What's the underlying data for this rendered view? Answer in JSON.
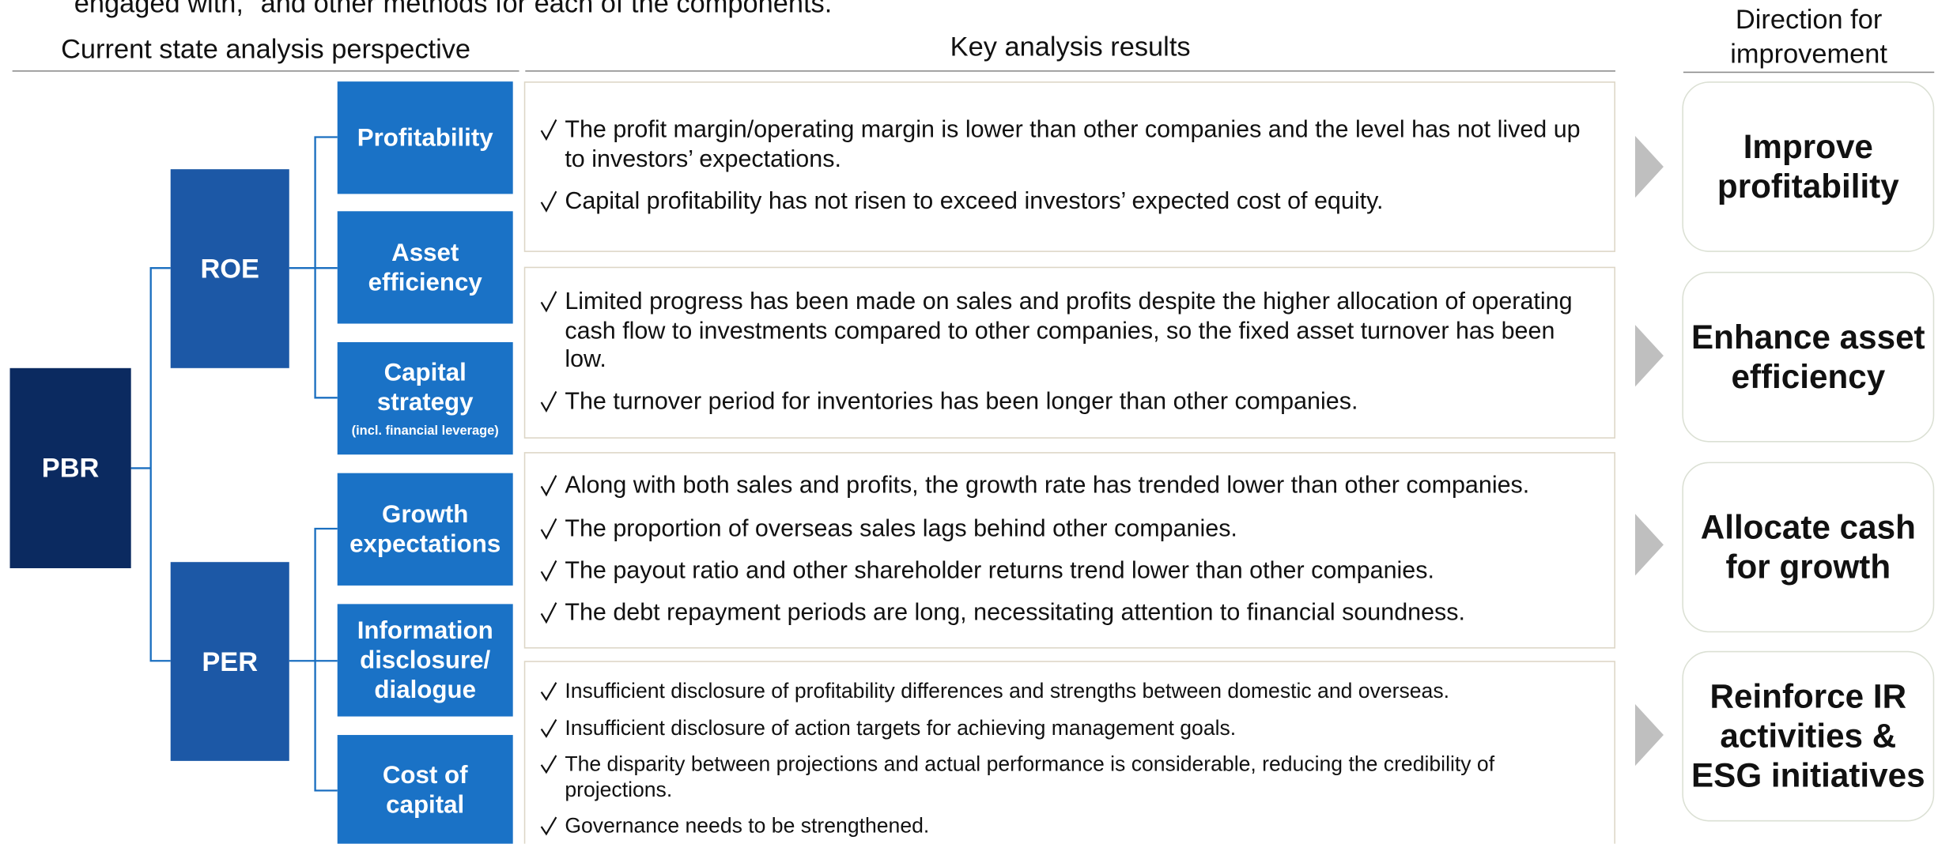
{
  "intro": "engaged with,\" and other methods for each of the components.",
  "headers": {
    "perspective": "Current state analysis perspective",
    "results": "Key analysis results",
    "direction": "Direction for improvement"
  },
  "root": {
    "label": "PBR"
  },
  "levels": [
    {
      "label": "ROE"
    },
    {
      "label": "PER"
    }
  ],
  "components": [
    {
      "label": "Profitability"
    },
    {
      "label": "Asset efficiency"
    },
    {
      "label": "Capital strategy",
      "note": "(incl. financial leverage)"
    },
    {
      "label": "Growth expectations"
    },
    {
      "label": "Information disclosure/ dialogue"
    },
    {
      "label": "Cost of capital"
    }
  ],
  "results": [
    {
      "bullets": [
        "The profit margin/operating margin is lower than other companies and the level has not lived up to investors’ expectations.",
        "Capital profitability has not risen to exceed investors’ expected cost of equity."
      ]
    },
    {
      "bullets": [
        "Limited progress has been made on sales and profits despite the higher allocation of operating cash flow to investments compared to other companies, so the fixed asset turnover has been low.",
        "The turnover period for inventories has been longer than other companies."
      ]
    },
    {
      "bullets": [
        "Along with both sales and profits, the growth rate has trended lower than other companies.",
        "The proportion of overseas sales lags behind other companies.",
        "The payout ratio and other shareholder returns trend lower than other companies.",
        "The debt repayment periods are long, necessitating attention to financial soundness."
      ]
    },
    {
      "bullets": [
        "Insufficient disclosure of profitability differences and strengths between domestic and overseas.",
        "Insufficient disclosure of action targets for achieving management goals.",
        "The disparity between projections and actual performance is considerable, reducing the credibility of projections.",
        "Governance needs to be strengthened."
      ]
    }
  ],
  "directions": [
    "Improve profitability",
    "Enhance asset efficiency",
    "Allocate cash for growth",
    "Reinforce IR activities & ESG initiatives"
  ]
}
